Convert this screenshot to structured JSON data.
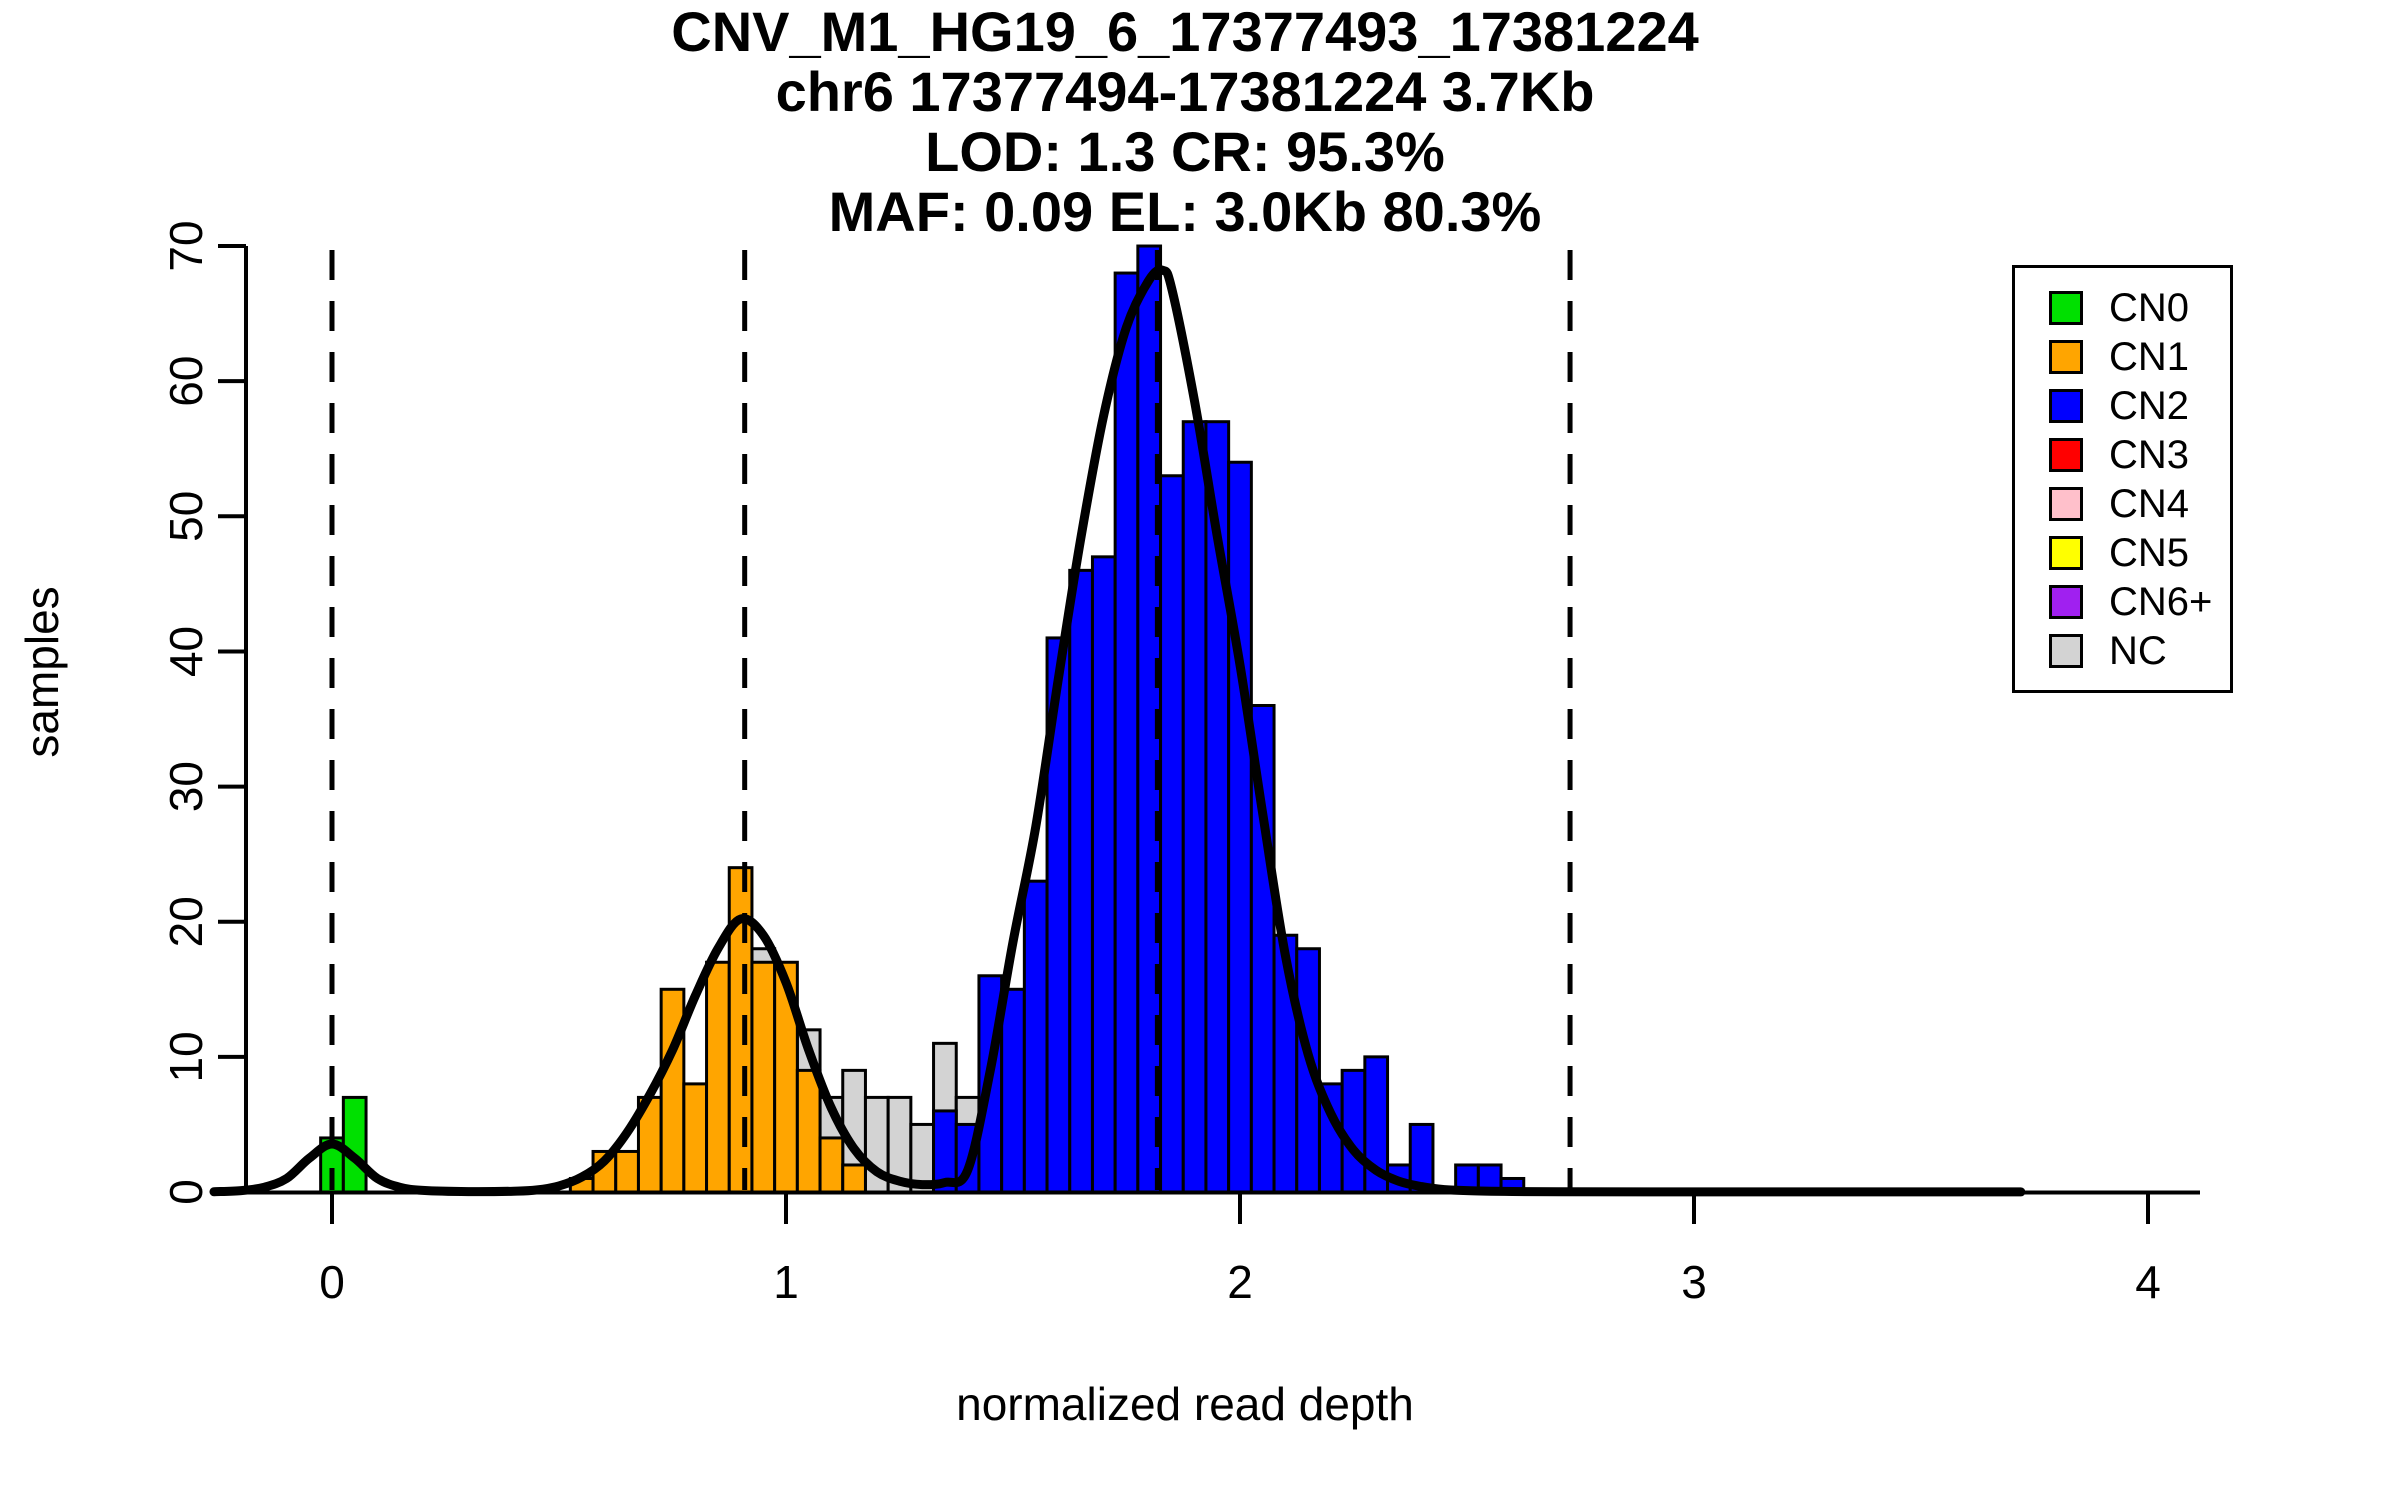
{
  "figure": {
    "title_lines": [
      "CNV_M1_HG19_6_17377493_17381224",
      "chr6 17377494-17381224 3.7Kb",
      "LOD: 1.3 CR: 95.3%",
      "MAF: 0.09 EL: 3.0Kb 80.3%"
    ],
    "xlabel": "normalized read depth",
    "ylabel": "samples"
  },
  "chart_data": {
    "type": "bar",
    "subtype": "histogram_with_density_overlay",
    "title": "CNV_M1_HG19_6_17377493_17381224",
    "subtitle_lines": [
      "chr6 17377494-17381224 3.7Kb",
      "LOD: 1.3 CR: 95.3%",
      "MAF: 0.09 EL: 3.0Kb 80.3%"
    ],
    "xlabel": "normalized read depth",
    "ylabel": "samples",
    "bin_width": 0.05,
    "x_ticks": [
      0,
      1,
      2,
      3,
      4
    ],
    "y_ticks": [
      0,
      10,
      20,
      30,
      40,
      50,
      60,
      70
    ],
    "ylim": [
      0,
      70
    ],
    "xlim": [
      -0.26,
      4.14
    ],
    "grid": false,
    "dashed_vlines": [
      0,
      0.909,
      1.818,
      2.727
    ],
    "series": [
      {
        "name": "NC",
        "color": "#D3D3D3",
        "centers": [
          0.95,
          1.05,
          1.1,
          1.15,
          1.2,
          1.25,
          1.3,
          1.35,
          1.4
        ],
        "counts": [
          18,
          12,
          7,
          9,
          7,
          7,
          5,
          11,
          7
        ]
      },
      {
        "name": "CN1",
        "color": "#FFA500",
        "centers": [
          0.55,
          0.6,
          0.65,
          0.7,
          0.75,
          0.8,
          0.85,
          0.9,
          0.95,
          1.0,
          1.05,
          1.1,
          1.15
        ],
        "counts": [
          1,
          3,
          3,
          7,
          15,
          8,
          17,
          24,
          17,
          17,
          9,
          4,
          2
        ]
      },
      {
        "name": "CN0",
        "color": "#00E000",
        "centers": [
          0.0,
          0.05
        ],
        "counts": [
          4,
          7
        ]
      },
      {
        "name": "CN2",
        "color": "#0000FF",
        "centers": [
          1.35,
          1.4,
          1.45,
          1.5,
          1.55,
          1.6,
          1.65,
          1.7,
          1.75,
          1.8,
          1.85,
          1.9,
          1.95,
          2.0,
          2.05,
          2.1,
          2.15,
          2.2,
          2.25,
          2.3,
          2.35,
          2.4,
          2.5,
          2.55,
          2.6
        ],
        "counts": [
          6,
          5,
          16,
          15,
          23,
          41,
          46,
          47,
          68,
          70,
          53,
          57,
          57,
          54,
          36,
          19,
          18,
          8,
          9,
          10,
          2,
          5,
          2,
          2,
          1
        ]
      }
    ],
    "density_curve": {
      "x": [
        -0.26,
        -0.2,
        -0.15,
        -0.1,
        -0.05,
        0.0,
        0.05,
        0.1,
        0.15,
        0.2,
        0.3,
        0.4,
        0.45,
        0.5,
        0.55,
        0.6,
        0.65,
        0.7,
        0.75,
        0.8,
        0.85,
        0.9,
        0.95,
        1.0,
        1.05,
        1.1,
        1.15,
        1.2,
        1.25,
        1.3,
        1.35,
        1.4,
        1.45,
        1.5,
        1.55,
        1.6,
        1.65,
        1.7,
        1.75,
        1.8,
        1.83,
        1.85,
        1.9,
        1.95,
        2.0,
        2.05,
        2.1,
        2.15,
        2.2,
        2.25,
        2.3,
        2.35,
        2.4,
        2.45,
        2.5,
        2.6,
        2.7,
        2.9,
        3.2,
        3.5,
        3.72
      ],
      "y": [
        0.02,
        0.1,
        0.35,
        1.0,
        2.5,
        3.55,
        2.5,
        1.0,
        0.35,
        0.12,
        0.03,
        0.06,
        0.15,
        0.45,
        1.1,
        2.3,
        4.4,
        7.2,
        10.5,
        14.5,
        18.0,
        20.2,
        19.0,
        15.5,
        10.5,
        6.2,
        3.2,
        1.5,
        0.8,
        0.55,
        0.7,
        1.6,
        9.0,
        18.5,
        27.0,
        38.0,
        48.5,
        57.5,
        64.0,
        67.5,
        68.2,
        66.8,
        58.5,
        48.5,
        39.0,
        28.0,
        17.5,
        10.2,
        5.8,
        3.1,
        1.6,
        0.8,
        0.4,
        0.18,
        0.1,
        0.04,
        0.02,
        0.01,
        0.01,
        0.01,
        0.01
      ]
    },
    "legend": {
      "position": "top-right",
      "entries": [
        {
          "label": "CN0",
          "color": "#00E000"
        },
        {
          "label": "CN1",
          "color": "#FFA500"
        },
        {
          "label": "CN2",
          "color": "#0000FF"
        },
        {
          "label": "CN3",
          "color": "#FF0000"
        },
        {
          "label": "CN4",
          "color": "#FFC0CB"
        },
        {
          "label": "CN5",
          "color": "#FFFF00"
        },
        {
          "label": "CN6+",
          "color": "#A020F0"
        },
        {
          "label": "NC",
          "color": "#D3D3D3"
        }
      ]
    }
  }
}
